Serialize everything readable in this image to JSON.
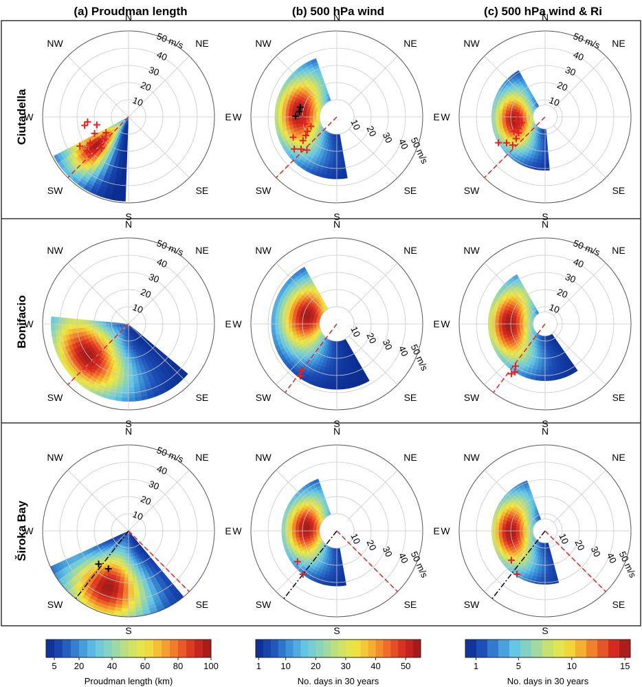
{
  "chart_data": {
    "type": "polar-contour",
    "column_titles": [
      "(a) Proudman length",
      "(b) 500 hPa wind",
      "(c) 500 hPa wind & Ri"
    ],
    "row_labels": [
      "Ciutadella",
      "Bonifacio",
      "Široka Bay"
    ],
    "direction_labels": [
      "N",
      "NE",
      "E",
      "SE",
      "S",
      "SW",
      "W",
      "NW"
    ],
    "radial_axis": {
      "ticks": [
        10,
        20,
        30,
        40
      ],
      "max_label": "50 m/s",
      "rmax": 50,
      "grid": true
    },
    "panels": [
      {
        "row": 0,
        "col": 0,
        "label_quadrant": "NE",
        "hole_radius": 0,
        "sector": [
          182,
          240
        ],
        "peak": [
          228,
          25
        ],
        "rmax_extent": 48,
        "ref_lines": [
          {
            "dir": 225,
            "style": "dashed",
            "color": "#e02020"
          }
        ],
        "events_red": [
          [
            259,
            26
          ],
          [
            263,
            24
          ],
          [
            256,
            19
          ],
          [
            235,
            16
          ],
          [
            230,
            20
          ],
          [
            221,
            24
          ],
          [
            236,
            27
          ],
          [
            239,
            33
          ],
          [
            231,
            31
          ],
          [
            225,
            29
          ],
          [
            244,
            22
          ]
        ],
        "events_black": []
      },
      {
        "row": 0,
        "col": 1,
        "label_quadrant": "SE",
        "hole_radius": 10,
        "sector": [
          170,
          340
        ],
        "peak": [
          276,
          22
        ],
        "rmax_extent": 36,
        "ref_lines": [
          {
            "dir": 225,
            "style": "dashed",
            "color": "#e02020"
          }
        ],
        "events_red": [
          [
            265,
            20
          ],
          [
            258,
            19
          ],
          [
            244,
            19
          ],
          [
            239,
            21
          ],
          [
            235,
            24
          ],
          [
            222,
            26
          ],
          [
            228,
            28
          ],
          [
            233,
            31
          ],
          [
            245,
            28
          ],
          [
            250,
            16
          ]
        ],
        "events_black": [
          [
            278,
            22
          ],
          [
            285,
            22
          ],
          [
            271,
            24
          ]
        ]
      },
      {
        "row": 0,
        "col": 2,
        "label_quadrant": "NE",
        "hole_radius": 7,
        "sector": [
          175,
          330
        ],
        "peak": [
          264,
          18
        ],
        "rmax_extent": 30,
        "ref_lines": [
          {
            "dir": 225,
            "style": "dashed",
            "color": "#e02020"
          }
        ],
        "events_red": [
          [
            272,
            16
          ],
          [
            262,
            17
          ],
          [
            256,
            14
          ],
          [
            247,
            17
          ],
          [
            239,
            18
          ],
          [
            233,
            21
          ],
          [
            229,
            25
          ],
          [
            236,
            27
          ],
          [
            241,
            31
          ],
          [
            245,
            20
          ]
        ],
        "events_black": []
      },
      {
        "row": 1,
        "col": 0,
        "label_quadrant": "NE",
        "hole_radius": 0,
        "sector": [
          130,
          275
        ],
        "peak": [
          232,
          30
        ],
        "rmax_extent": 44,
        "ref_lines": [
          {
            "dir": 225,
            "style": "dashed",
            "color": "#e02020"
          }
        ],
        "events_red": [
          [
            222,
            29
          ],
          [
            220,
            34
          ]
        ],
        "events_black": []
      },
      {
        "row": 1,
        "col": 1,
        "label_quadrant": "SE",
        "hole_radius": 10,
        "sector": [
          150,
          330
        ],
        "peak": [
          285,
          18
        ],
        "rmax_extent": 38,
        "ref_lines": [
          {
            "dir": 217,
            "style": "dashed",
            "color": "#e02020"
          }
        ],
        "events_red": [
          [
            217,
            34
          ],
          [
            215,
            37
          ]
        ],
        "events_black": []
      },
      {
        "row": 1,
        "col": 2,
        "label_quadrant": "NE",
        "hole_radius": 7,
        "sector": [
          145,
          330
        ],
        "peak": [
          270,
          21
        ],
        "rmax_extent": 32,
        "ref_lines": [
          {
            "dir": 217,
            "style": "dashed",
            "color": "#e02020"
          }
        ],
        "events_red": [
          [
            215,
            30
          ],
          [
            212,
            33
          ],
          [
            214,
            35
          ]
        ],
        "events_black": []
      },
      {
        "row": 2,
        "col": 0,
        "label_quadrant": "NE",
        "hole_radius": 0,
        "sector": [
          140,
          242
        ],
        "peak": [
          200,
          35
        ],
        "rmax_extent": 50,
        "ref_lines": [
          {
            "dir": 218,
            "style": "dash-dot",
            "color": "#000000"
          },
          {
            "dir": 135,
            "style": "dashed",
            "color": "#e02020"
          }
        ],
        "events_red": [],
        "events_black": [
          [
            222,
            26
          ],
          [
            208,
            25
          ]
        ]
      },
      {
        "row": 2,
        "col": 1,
        "label_quadrant": "SE",
        "hole_radius": 10,
        "sector": [
          170,
          340
        ],
        "peak": [
          275,
          18
        ],
        "rmax_extent": 32,
        "ref_lines": [
          {
            "dir": 218,
            "style": "dash-dot",
            "color": "#000000"
          },
          {
            "dir": 135,
            "style": "dashed",
            "color": "#e02020"
          }
        ],
        "events_red": [
          [
            232,
            29
          ],
          [
            218,
            32
          ]
        ],
        "events_black": []
      },
      {
        "row": 2,
        "col": 2,
        "label_quadrant": "SE",
        "hole_radius": 7,
        "sector": [
          165,
          340
        ],
        "peak": [
          268,
          20
        ],
        "rmax_extent": 30,
        "ref_lines": [
          {
            "dir": 218,
            "style": "dash-dot",
            "color": "#000000"
          },
          {
            "dir": 135,
            "style": "dashed",
            "color": "#e02020"
          }
        ],
        "events_red": [
          [
            229,
            26
          ],
          [
            213,
            30
          ]
        ],
        "events_black": []
      }
    ],
    "colorbars": [
      {
        "title": "Proudman length (km)",
        "ticks": [
          5,
          20,
          40,
          60,
          80,
          100
        ],
        "min": 0,
        "max": 100,
        "levels": 20
      },
      {
        "title": "No. days in 30 years",
        "ticks": [
          1,
          10,
          20,
          30,
          40,
          50
        ],
        "min": 0,
        "max": 55,
        "levels": 22
      },
      {
        "title": "No. days in 30 years",
        "ticks": [
          1,
          5,
          10,
          15
        ],
        "min": 0,
        "max": 15.5,
        "levels": 15
      }
    ],
    "colors": {
      "scale": [
        "#0a2a8e",
        "#1d4fb8",
        "#3b8fd8",
        "#66c6e6",
        "#8fd6b4",
        "#c8e070",
        "#f0e840",
        "#f5b032",
        "#ef6a2a",
        "#d42a20",
        "#961818"
      ],
      "event_red": "#e02020",
      "event_black": "#000000",
      "grid": "#c8c8c8"
    }
  }
}
